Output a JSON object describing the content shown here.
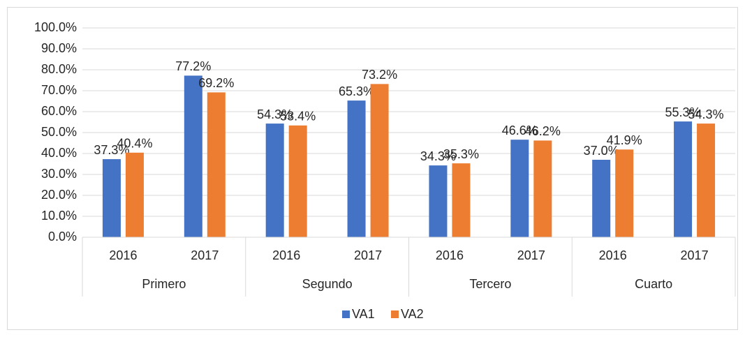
{
  "chart_data": {
    "type": "bar",
    "categories": [
      "2016",
      "2017",
      "2016",
      "2017",
      "2016",
      "2017",
      "2016",
      "2017"
    ],
    "groups": [
      "Primero",
      "Segundo",
      "Tercero",
      "Cuarto"
    ],
    "series": [
      {
        "name": "VA1",
        "color": "#4472c4",
        "values": [
          37.3,
          77.2,
          54.3,
          65.3,
          34.3,
          46.6,
          37.0,
          55.3
        ],
        "value_labels": [
          "37.3%",
          "77.2%",
          "54.3%",
          "65.3%",
          "34.3%",
          "46.6%",
          "37.0%",
          "55.3%"
        ]
      },
      {
        "name": "VA2",
        "color": "#ed7d31",
        "values": [
          40.4,
          69.2,
          53.4,
          73.2,
          35.3,
          46.2,
          41.9,
          54.3
        ],
        "value_labels": [
          "40.4%",
          "69.2%",
          "53.4%",
          "73.2%",
          "35.3%",
          "46.2%",
          "41.9%",
          "54.3%"
        ]
      }
    ],
    "ylim": [
      0,
      100
    ],
    "yticks": [
      {
        "value": 0,
        "label": "0.0%"
      },
      {
        "value": 10,
        "label": "10.0%"
      },
      {
        "value": 20,
        "label": "20.0%"
      },
      {
        "value": 30,
        "label": "30.0%"
      },
      {
        "value": 40,
        "label": "40.0%"
      },
      {
        "value": 50,
        "label": "50.0%"
      },
      {
        "value": 60,
        "label": "60.0%"
      },
      {
        "value": 70,
        "label": "70.0%"
      },
      {
        "value": 80,
        "label": "80.0%"
      },
      {
        "value": 90,
        "label": "90.0%"
      },
      {
        "value": 100,
        "label": "100.0%"
      }
    ],
    "grid": true,
    "legend": "bottom"
  }
}
